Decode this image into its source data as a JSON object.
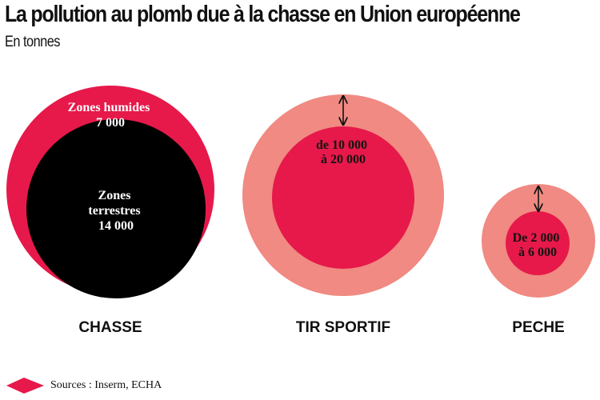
{
  "title": "La pollution au plomb due à la chasse en Union européenne",
  "subtitle": "En tonnes",
  "source": "Sources : Inserm, ECHA",
  "colors": {
    "crimson": "#e6194a",
    "black": "#000000",
    "salmon": "#f08a82",
    "text_dark": "#111111",
    "text_light": "#ffffff"
  },
  "chart_data": {
    "type": "nested-circles",
    "title": "La pollution au plomb due à la chasse en Union européenne",
    "subtitle": "En tonnes",
    "groups": [
      {
        "name": "CHASSE",
        "circles": [
          {
            "label": "Zones humides",
            "value_label": "7 000",
            "value": 7000,
            "color": "#e6194a",
            "text_color": "#ffffff"
          },
          {
            "label": "Zones terrestres",
            "value_label": "14 000",
            "value": 14000,
            "color": "#000000",
            "text_color": "#ffffff"
          }
        ]
      },
      {
        "name": "TIR SPORTIF",
        "range": {
          "min": 10000,
          "max": 20000,
          "label_lines": [
            "de 10 000",
            "à 20 000"
          ]
        },
        "colors": {
          "outer": "#f08a82",
          "inner": "#e6194a"
        }
      },
      {
        "name": "PECHE",
        "range": {
          "min": 2000,
          "max": 6000,
          "label_lines": [
            "De 2 000",
            "à 6 000"
          ]
        },
        "colors": {
          "outer": "#f08a82",
          "inner": "#e6194a"
        }
      }
    ]
  }
}
